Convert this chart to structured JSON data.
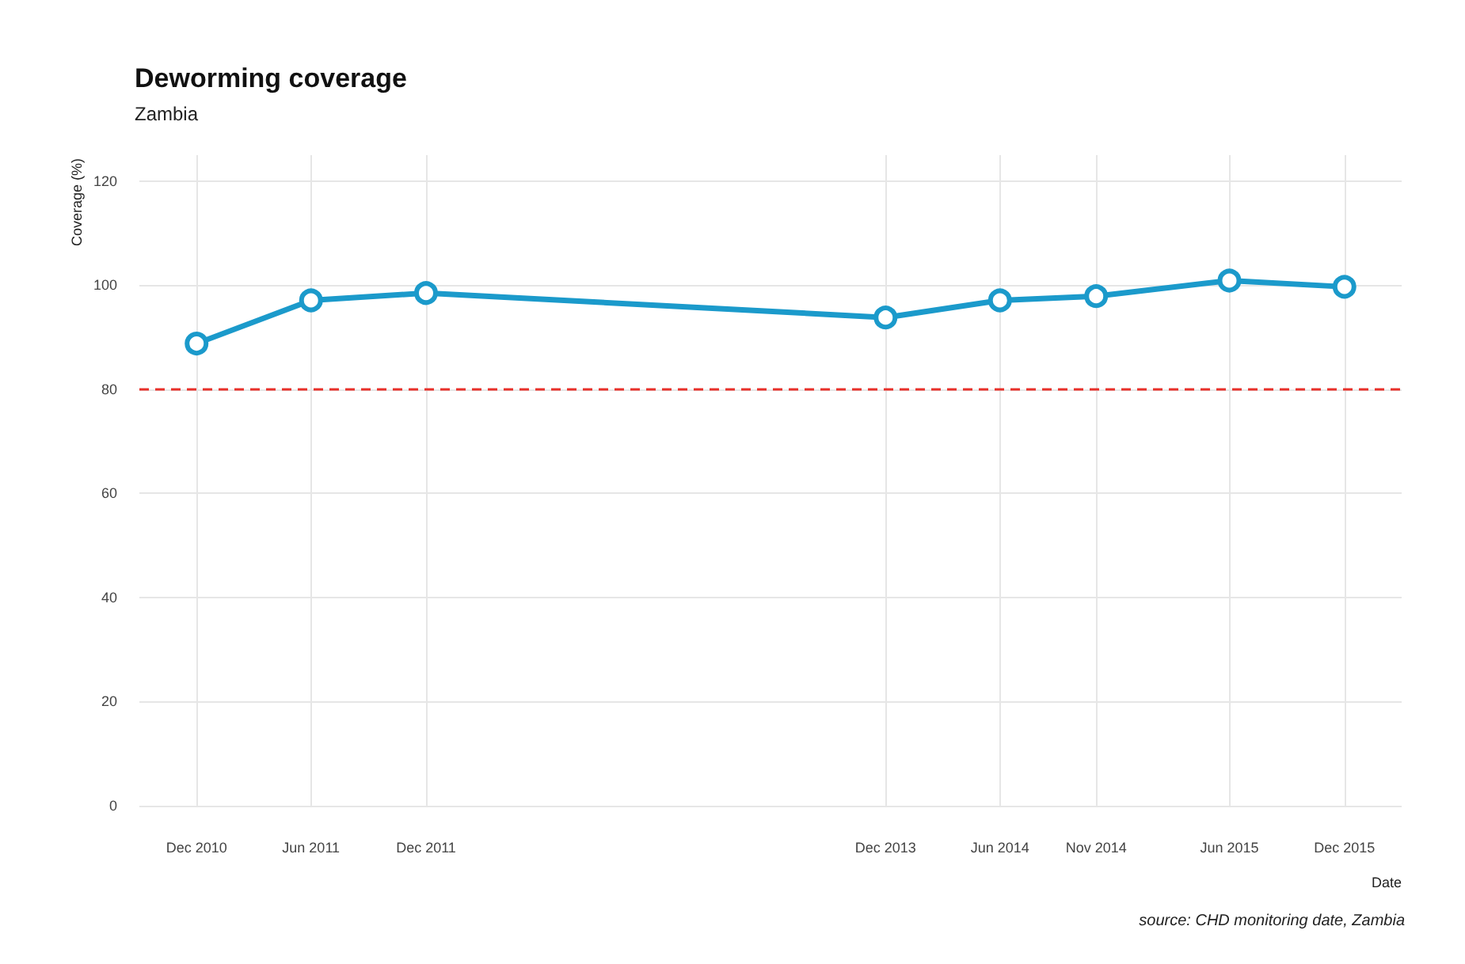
{
  "chart_data": {
    "type": "line",
    "title": "Deworming coverage",
    "subtitle": "Zambia",
    "xlabel": "Date",
    "ylabel": "Coverage (%)",
    "annotations": [
      "source: CHD monitoring date, Zambia"
    ],
    "x": [
      "2010-12",
      "2011-06",
      "2011-12",
      "2013-12",
      "2014-06",
      "2014-11",
      "2015-06",
      "2015-12"
    ],
    "series": [
      {
        "color": "#1b9acb",
        "values": [
          88.8,
          97.1,
          98.5,
          93.8,
          97.1,
          97.9,
          100.9,
          99.7
        ]
      }
    ],
    "xlim": [
      "2010-09",
      "2016-03"
    ],
    "xticks": [
      {
        "value": "2010-12",
        "label": "Dec 2010"
      },
      {
        "value": "2011-06",
        "label": "Jun 2011"
      },
      {
        "value": "2011-12",
        "label": "Dec 2011"
      },
      {
        "value": "2013-12",
        "label": "Dec 2013"
      },
      {
        "value": "2014-06",
        "label": "Jun 2014"
      },
      {
        "value": "2014-11",
        "label": "Nov 2014"
      },
      {
        "value": "2015-06",
        "label": "Jun 2015"
      },
      {
        "value": "2015-12",
        "label": "Dec 2015"
      }
    ],
    "ylim": [
      0,
      125
    ],
    "yticks": [
      0,
      20,
      40,
      60,
      80,
      100,
      120
    ],
    "ref_lines": [
      {
        "axis": "y",
        "value": 80,
        "color": "#e8302a",
        "line_style": "dashed"
      }
    ],
    "grid": true,
    "marker": "circle",
    "line_style": "solid"
  }
}
